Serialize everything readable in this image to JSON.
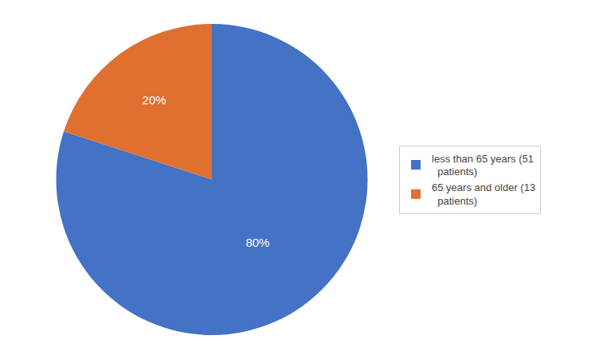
{
  "chart_data": {
    "type": "pie",
    "categories": [
      "less than 65 years (51\n  patients)",
      "65 years and older (13\n  patients)"
    ],
    "values": [
      80,
      20
    ],
    "value_labels": [
      "80%",
      "20%"
    ],
    "colors": [
      "#4472C4",
      "#E07030"
    ],
    "legend": "right"
  }
}
